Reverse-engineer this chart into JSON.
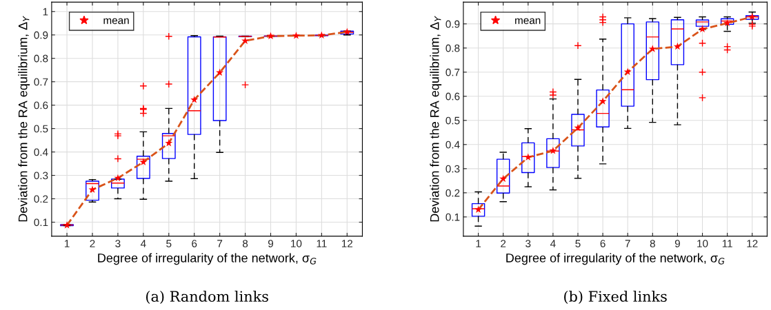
{
  "chart_data": [
    {
      "type": "box",
      "xlabel": "Degree of irregularity of the network, σ$_{G}$",
      "ylabel": "Deviation from the RA equilibrium, Δ$_{Y}$",
      "annotations": [
        "(a) Random links"
      ],
      "categories": [
        "1",
        "2",
        "3",
        "4",
        "5",
        "6",
        "7",
        "8",
        "9",
        "10",
        "11",
        "12"
      ],
      "color": "#0000ff",
      "boxes": [
        {
          "low": 0.085,
          "q1": 0.085,
          "median": 0.088,
          "q3": 0.09,
          "high": 0.09
        },
        {
          "low": 0.186,
          "q1": 0.194,
          "median": 0.265,
          "q3": 0.275,
          "high": 0.282
        },
        {
          "low": 0.2,
          "q1": 0.246,
          "median": 0.267,
          "q3": 0.284,
          "high": 0.284,
          "outliers": [
            0.477,
            0.469,
            0.371
          ]
        },
        {
          "low": 0.198,
          "q1": 0.287,
          "median": 0.369,
          "q3": 0.382,
          "high": 0.486,
          "outliers": [
            0.682,
            0.586,
            0.582,
            0.565
          ]
        },
        {
          "low": 0.275,
          "q1": 0.372,
          "median": 0.469,
          "q3": 0.479,
          "high": 0.586,
          "outliers": [
            0.894,
            0.69
          ]
        },
        {
          "low": 0.286,
          "q1": 0.475,
          "median": 0.576,
          "q3": 0.892,
          "high": 0.897
        },
        {
          "low": 0.398,
          "q1": 0.534,
          "median": 0.891,
          "q3": 0.892,
          "high": 0.895
        },
        {
          "low": 0.893,
          "q1": 0.893,
          "median": 0.894,
          "q3": 0.895,
          "high": 0.895,
          "outliers": [
            0.687
          ]
        },
        {
          "low": 0.893,
          "q1": 0.894,
          "median": 0.895,
          "q3": 0.896,
          "high": 0.897
        },
        {
          "low": 0.896,
          "q1": 0.896,
          "median": 0.897,
          "q3": 0.898,
          "high": 0.898
        },
        {
          "low": 0.897,
          "q1": 0.897,
          "median": 0.898,
          "q3": 0.899,
          "high": 0.899
        },
        {
          "low": 0.9,
          "q1": 0.904,
          "median": 0.911,
          "q3": 0.916,
          "high": 0.916
        }
      ],
      "series": [
        {
          "name": "mean",
          "type": "scatter",
          "color": "#ff0000",
          "marker": "star",
          "values": [
            0.087,
            0.239,
            0.288,
            0.357,
            0.438,
            0.623,
            0.739,
            0.875,
            0.895,
            0.897,
            0.898,
            0.913
          ]
        },
        {
          "type": "line",
          "color": "#d95319",
          "line_style": "dashed",
          "values": [
            0.087,
            0.239,
            0.288,
            0.357,
            0.438,
            0.623,
            0.739,
            0.875,
            0.895,
            0.897,
            0.898,
            0.913
          ]
        }
      ],
      "ylim": [
        0.04,
        1.04
      ],
      "yticks": [
        0.1,
        0.2,
        0.3,
        0.4,
        0.5,
        0.6,
        0.7,
        0.8,
        0.9,
        1
      ],
      "grid": true,
      "legend": "top left"
    },
    {
      "type": "box",
      "xlabel": "Degree of irregularity of the network, σ$_{G}$",
      "ylabel": "Deviation from the RA equilibrium, Δ$_{Y}$",
      "annotations": [
        "(b) Fixed links"
      ],
      "categories": [
        "1",
        "2",
        "3",
        "4",
        "5",
        "6",
        "7",
        "8",
        "9",
        "10",
        "11",
        "12"
      ],
      "color": "#0000ff",
      "boxes": [
        {
          "low": 0.062,
          "q1": 0.103,
          "median": 0.134,
          "q3": 0.155,
          "high": 0.204
        },
        {
          "low": 0.163,
          "q1": 0.199,
          "median": 0.228,
          "q3": 0.339,
          "high": 0.368
        },
        {
          "low": 0.225,
          "q1": 0.284,
          "median": 0.35,
          "q3": 0.407,
          "high": 0.466
        },
        {
          "low": 0.212,
          "q1": 0.305,
          "median": 0.373,
          "q3": 0.424,
          "high": 0.589,
          "outliers": [
            0.618,
            0.605
          ]
        },
        {
          "low": 0.26,
          "q1": 0.394,
          "median": 0.461,
          "q3": 0.525,
          "high": 0.67,
          "outliers": [
            0.81
          ]
        },
        {
          "low": 0.32,
          "q1": 0.473,
          "median": 0.529,
          "q3": 0.626,
          "high": 0.837,
          "outliers": [
            0.929,
            0.917,
            0.906
          ]
        },
        {
          "low": 0.467,
          "q1": 0.559,
          "median": 0.627,
          "q3": 0.9,
          "high": 0.925
        },
        {
          "low": 0.492,
          "q1": 0.669,
          "median": 0.846,
          "q3": 0.908,
          "high": 0.922
        },
        {
          "low": 0.482,
          "q1": 0.731,
          "median": 0.879,
          "q3": 0.917,
          "high": 0.927
        },
        {
          "low": 0.877,
          "q1": 0.89,
          "median": 0.908,
          "q3": 0.916,
          "high": 0.929,
          "outliers": [
            0.82,
            0.7,
            0.594
          ]
        },
        {
          "low": 0.869,
          "q1": 0.898,
          "median": 0.912,
          "q3": 0.921,
          "high": 0.929,
          "outliers": [
            0.806,
            0.792
          ]
        },
        {
          "low": 0.903,
          "q1": 0.919,
          "median": 0.929,
          "q3": 0.934,
          "high": 0.949,
          "outliers": [
            0.898,
            0.891
          ]
        }
      ],
      "series": [
        {
          "name": "mean",
          "type": "scatter",
          "color": "#ff0000",
          "marker": "star",
          "values": [
            0.13,
            0.258,
            0.347,
            0.374,
            0.469,
            0.579,
            0.701,
            0.796,
            0.806,
            0.878,
            0.903,
            0.929
          ]
        },
        {
          "type": "line",
          "color": "#d95319",
          "line_style": "dashed",
          "values": [
            0.13,
            0.258,
            0.347,
            0.374,
            0.469,
            0.579,
            0.701,
            0.796,
            0.806,
            0.878,
            0.903,
            0.929
          ]
        }
      ],
      "ylim": [
        0.02,
        0.99
      ],
      "yticks": [
        0.1,
        0.2,
        0.3,
        0.4,
        0.5,
        0.6,
        0.7,
        0.8,
        0.9
      ],
      "grid": true,
      "legend": "top left"
    }
  ]
}
